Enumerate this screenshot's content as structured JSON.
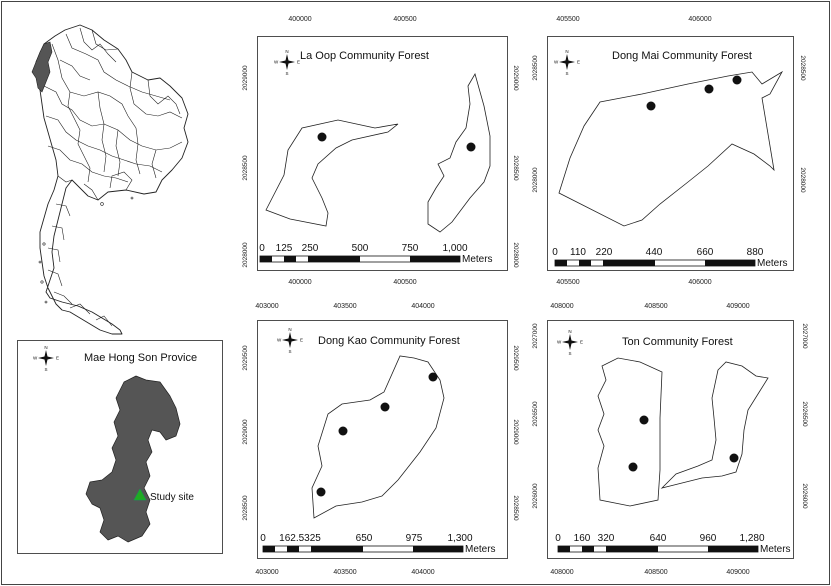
{
  "inset_province": {
    "title": "Mae Hong Son Provice",
    "legend_label": "Study site",
    "province_color": "#555555",
    "study_site_color": "#22aa22",
    "compass": {
      "n": "N",
      "s": "S",
      "e": "E",
      "w": "W"
    }
  },
  "maps": [
    {
      "title": "La Oop Community Forest",
      "top_ticks": [
        "400000",
        "400500"
      ],
      "bottom_ticks": [
        "400000",
        "400500"
      ],
      "left_ticks": [
        "2029000",
        "2028500",
        "2028000"
      ],
      "right_ticks": [
        "2029000",
        "2028500",
        "2028000"
      ],
      "scale_labels": [
        "0",
        "125",
        "250",
        "500",
        "750",
        "1,000"
      ],
      "scale_unit": "Meters",
      "compass": {
        "n": "N",
        "s": "S",
        "e": "E",
        "w": "W"
      }
    },
    {
      "title": "Dong Mai Community Forest",
      "top_ticks": [
        "405500",
        "406000"
      ],
      "bottom_ticks": [
        "405500",
        "406000"
      ],
      "left_ticks": [
        "2028500",
        "2028000"
      ],
      "right_ticks": [
        "2028500",
        "2028000"
      ],
      "scale_labels": [
        "0",
        "110",
        "220",
        "440",
        "660",
        "880"
      ],
      "scale_unit": "Meters",
      "compass": {
        "n": "N",
        "s": "S",
        "e": "E",
        "w": "W"
      }
    },
    {
      "title": "Dong Kao Community Forest",
      "top_ticks": [
        "403000",
        "403500",
        "404000"
      ],
      "bottom_ticks": [
        "403000",
        "403500",
        "404000"
      ],
      "left_ticks": [
        "2029500",
        "2029000",
        "2028500"
      ],
      "right_ticks": [
        "2029500",
        "2029000",
        "2028500"
      ],
      "scale_labels": [
        "0",
        "162.5325",
        "650",
        "975",
        "1,300"
      ],
      "scale_unit": "Meters",
      "compass": {
        "n": "N",
        "s": "S",
        "e": "E",
        "w": "W"
      }
    },
    {
      "title": "Ton Community Forest",
      "top_ticks": [
        "408000",
        "408500",
        "409000"
      ],
      "bottom_ticks": [
        "408000",
        "408500",
        "409000"
      ],
      "left_ticks": [
        "2027000",
        "2026500",
        "2026000"
      ],
      "right_ticks": [
        "2027000",
        "2026500",
        "2026000"
      ],
      "scale_labels": [
        "0",
        "160",
        "320",
        "640",
        "960",
        "1,280"
      ],
      "scale_unit": "Meters",
      "compass": {
        "n": "N",
        "s": "S",
        "e": "E",
        "w": "W"
      }
    }
  ]
}
